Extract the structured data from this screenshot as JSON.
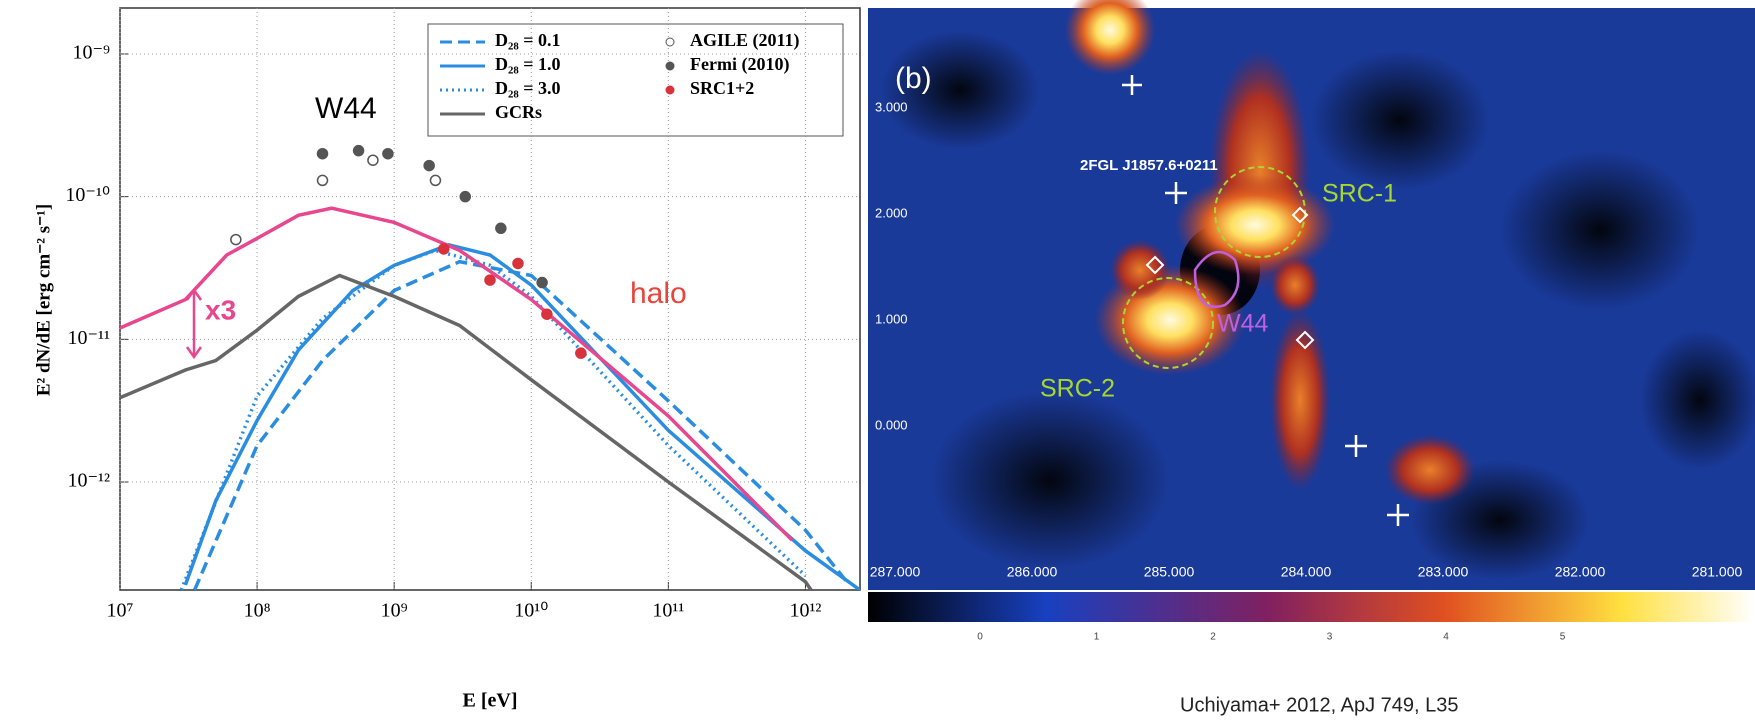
{
  "chart_data": {
    "type": "line",
    "xlabel": "E [eV]",
    "ylabel": "E² dN/dE [erg cm⁻² s⁻¹]",
    "xlim": [
      10000000.0,
      2500000000000.0
    ],
    "ylim": [
      1.75e-13,
      2.1e-09
    ],
    "xscale": "log",
    "yscale": "log",
    "grid": true,
    "xticks": [
      {
        "value": 10000000.0,
        "label": "10⁷"
      },
      {
        "value": 100000000.0,
        "label": "10⁸"
      },
      {
        "value": 1000000000.0,
        "label": "10⁹"
      },
      {
        "value": 10000000000.0,
        "label": "10¹⁰"
      },
      {
        "value": 100000000000.0,
        "label": "10¹¹"
      },
      {
        "value": 1000000000000.0,
        "label": "10¹²"
      }
    ],
    "yticks": [
      {
        "value": 1e-12,
        "label": "10⁻¹²"
      },
      {
        "value": 1e-11,
        "label": "10⁻¹¹"
      },
      {
        "value": 1e-10,
        "label": "10⁻¹⁰"
      },
      {
        "value": 1e-09,
        "label": "10⁻⁹"
      }
    ],
    "series": [
      {
        "name": "D₂₈ = 0.1",
        "color": "#2a8de0",
        "dash": "dashed",
        "x": [
          35000000.0,
          100000000.0,
          300000000.0,
          1000000000.0,
          3000000000.0,
          10000000000.0,
          100000000000.0,
          1000000000000.0,
          2000000000000.0
        ],
        "values": [
          1.75e-13,
          1.8e-12,
          7.1e-12,
          2.2e-11,
          3.5e-11,
          2.8e-11,
          3.7e-12,
          4.6e-13,
          2e-13
        ]
      },
      {
        "name": "D₂₈ = 1.0",
        "color": "#2a8de0",
        "dash": "solid",
        "x": [
          30000000.0,
          50000000.0,
          100000000.0,
          200000000.0,
          500000000.0,
          1000000000.0,
          2500000000.0,
          5000000000.0,
          10000000000.0,
          100000000000.0,
          1000000000000.0,
          2500000000000.0
        ],
        "values": [
          1.9e-13,
          7.4e-13,
          2.7e-12,
          8.4e-12,
          2.2e-11,
          3.3e-11,
          4.6e-11,
          3.9e-11,
          2.4e-11,
          2.3e-12,
          3.3e-13,
          1.75e-13
        ]
      },
      {
        "name": "D₂₈ = 3.0",
        "color": "#2a8de0",
        "dash": "dotted",
        "x": [
          28000000.0,
          100000000.0,
          300000000.0,
          1000000000.0,
          2000000000.0,
          5000000000.0,
          10000000000.0,
          100000000000.0,
          1000000000000.0
        ],
        "values": [
          1.75e-13,
          4e-12,
          1.4e-11,
          3.3e-11,
          4.2e-11,
          3.3e-11,
          2e-11,
          1.8e-12,
          2.2e-13
        ]
      },
      {
        "name": "GCRs",
        "color": "#666666",
        "dash": "solid",
        "x": [
          10000000.0,
          30000000.0,
          50000000.0,
          100000000.0,
          200000000.0,
          400000000.0,
          1000000000.0,
          3000000000.0,
          10000000000.0,
          100000000000.0,
          1000000000000.0,
          1100000000000.0
        ],
        "values": [
          3.9e-12,
          6.1e-12,
          7.1e-12,
          1.16e-11,
          2e-11,
          2.8e-11,
          2e-11,
          1.25e-11,
          5.2e-12,
          1e-12,
          2e-13,
          1.75e-13
        ]
      },
      {
        "color": "#e8468e",
        "dash": "solid",
        "x": [
          10000000.0,
          30000000.0,
          60000000.0,
          100000000.0,
          200000000.0,
          350000000.0,
          1000000000.0,
          3000000000.0,
          10000000000.0,
          100000000000.0,
          800000000000.0
        ],
        "values": [
          1.2e-11,
          1.9e-11,
          3.9e-11,
          5.1e-11,
          7.4e-11,
          8.3e-11,
          6.6e-11,
          4.2e-11,
          1.9e-11,
          2.9e-12,
          3.9e-13
        ]
      }
    ],
    "points": [
      {
        "name": "AGILE (2011)",
        "color": "#555555",
        "marker": "open",
        "x": [
          70000000.0,
          300000000.0,
          700000000.0,
          2000000000.0
        ],
        "values": [
          5e-11,
          1.3e-10,
          1.8e-10,
          1.3e-10
        ]
      },
      {
        "name": "Fermi (2010)",
        "color": "#555555",
        "marker": "filled",
        "x": [
          300000000.0,
          550000000.0,
          900000000.0,
          1800000000.0,
          3300000000.0,
          6000000000.0,
          12000000000.0
        ],
        "values": [
          2e-10,
          2.1e-10,
          2e-10,
          1.65e-10,
          1e-10,
          6e-11,
          2.5e-11
        ]
      },
      {
        "name": "SRC1+2",
        "color": "#d8323c",
        "marker": "filled",
        "x": [
          2300000000.0,
          5000000000.0,
          8000000000.0,
          13000000000.0,
          23000000000.0
        ],
        "values": [
          4.3e-11,
          2.6e-11,
          3.4e-11,
          1.5e-11,
          8e-12
        ]
      }
    ],
    "annotations": [
      "W44",
      "x3",
      "halo"
    ]
  },
  "image_panel": {
    "panel_label": "(b)",
    "source": "2FGL J1857.6+0211",
    "src1": "SRC-1",
    "src2": "SRC-2",
    "object": "W44",
    "yticks": [
      "3.000",
      "2.000",
      "1.000",
      "0.000"
    ],
    "xticks": [
      "287.000",
      "286.000",
      "285.000",
      "284.000",
      "283.000",
      "282.000",
      "281.000"
    ],
    "colorbar_ticks": [
      "0",
      "1",
      "2",
      "3",
      "4",
      "5"
    ]
  },
  "caption": "Uchiyama+ 2012, ApJ 749, L35"
}
